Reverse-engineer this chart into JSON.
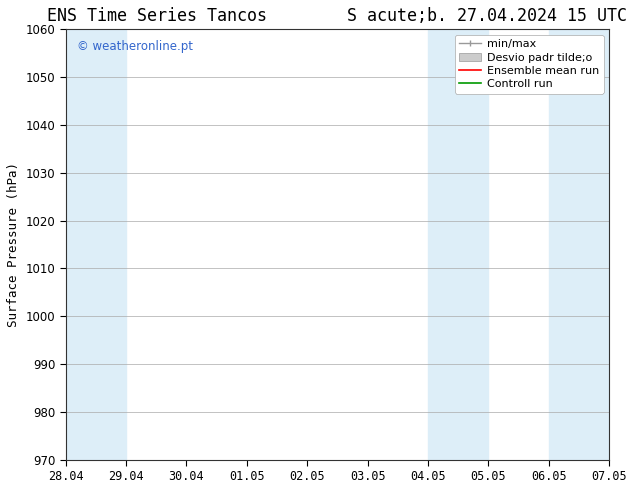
{
  "title": "ENS Time Series Tancos        S acute;b. 27.04.2024 15 UTC",
  "ylabel": "Surface Pressure (hPa)",
  "ylim": [
    970,
    1060
  ],
  "yticks": [
    970,
    980,
    990,
    1000,
    1010,
    1020,
    1030,
    1040,
    1050,
    1060
  ],
  "xtick_labels": [
    "28.04",
    "29.04",
    "30.04",
    "01.05",
    "02.05",
    "03.05",
    "04.05",
    "05.05",
    "06.05",
    "07.05"
  ],
  "xlim_start": 0,
  "xlim_end": 9,
  "shaded_bands": [
    {
      "x_start": 0.0,
      "x_end": 1.0,
      "color": "#ddeef8"
    },
    {
      "x_start": 6.0,
      "x_end": 7.0,
      "color": "#ddeef8"
    },
    {
      "x_start": 8.0,
      "x_end": 9.0,
      "color": "#ddeef8"
    }
  ],
  "watermark_text": "© weatheronline.pt",
  "watermark_color": "#3366cc",
  "legend_labels": [
    "min/max",
    "Desvio padr tilde;o",
    "Ensemble mean run",
    "Controll run"
  ],
  "legend_colors": [
    "#999999",
    "#cccccc",
    "#ff0000",
    "#009900"
  ],
  "bg_color": "#ffffff",
  "plot_bg_color": "#ffffff",
  "grid_color": "#aaaaaa",
  "border_color": "#333333",
  "title_fontsize": 12,
  "label_fontsize": 9,
  "tick_fontsize": 8.5,
  "legend_fontsize": 8
}
